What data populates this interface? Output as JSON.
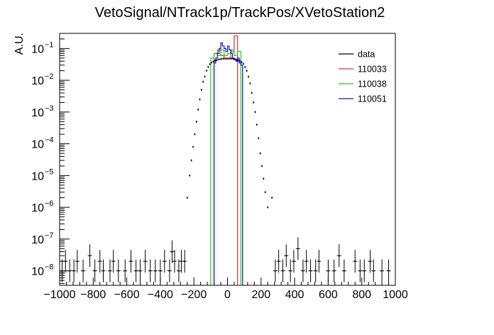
{
  "chart_data": {
    "type": "histogram",
    "title": "VetoSignal/NTrack1p/TrackPos/XVetoStation2",
    "xlabel": "",
    "ylabel": "A.U.",
    "xlim": [
      -1000,
      1000
    ],
    "ylim": [
      3.5e-09,
      0.3
    ],
    "y_scale": "log",
    "grid": false,
    "legend_position": "top-right",
    "x_tick_labels": [
      "−1000",
      "−800",
      "−600",
      "−400",
      "−200",
      "0",
      "200",
      "400",
      "600",
      "800",
      "1000"
    ],
    "x_ticks": [
      -1000,
      -800,
      -600,
      -400,
      -200,
      0,
      200,
      400,
      600,
      800,
      1000
    ],
    "y_ticks": [
      {
        "value": 1e-08,
        "base": "10",
        "exp": "−8"
      },
      {
        "value": 1e-07,
        "base": "10",
        "exp": "−7"
      },
      {
        "value": 1e-06,
        "base": "10",
        "exp": "−6"
      },
      {
        "value": 1e-05,
        "base": "10",
        "exp": "−5"
      },
      {
        "value": 0.0001,
        "base": "10",
        "exp": "−4"
      },
      {
        "value": 0.001,
        "base": "10",
        "exp": "−3"
      },
      {
        "value": 0.01,
        "base": "10",
        "exp": "−2"
      },
      {
        "value": 0.1,
        "base": "10",
        "exp": "−1"
      }
    ],
    "series": [
      {
        "name": "data",
        "color": "#000000",
        "style": "points",
        "x": [
          -240,
          -225,
          -215,
          -205,
          -195,
          -185,
          -175,
          -165,
          -155,
          -145,
          -135,
          -125,
          -115,
          -105,
          -95,
          -85,
          -75,
          -65,
          -55,
          -45,
          -35,
          -25,
          -15,
          -5,
          5,
          15,
          25,
          35,
          45,
          55,
          65,
          75,
          85,
          95,
          105,
          115,
          125,
          135,
          145,
          155,
          165,
          175,
          185,
          195,
          205,
          215,
          225,
          240,
          265
        ],
        "y": [
          2e-06,
          1e-05,
          3e-05,
          8e-05,
          0.0002,
          0.0005,
          0.0012,
          0.0025,
          0.005,
          0.009,
          0.013,
          0.02,
          0.026,
          0.032,
          0.036,
          0.039,
          0.041,
          0.043,
          0.045,
          0.046,
          0.047,
          0.048,
          0.048,
          0.048,
          0.048,
          0.048,
          0.048,
          0.047,
          0.046,
          0.044,
          0.042,
          0.04,
          0.037,
          0.033,
          0.026,
          0.02,
          0.013,
          0.008,
          0.004,
          0.002,
          0.001,
          0.0004,
          0.00015,
          5e-05,
          2e-05,
          8e-06,
          3e-06,
          1e-06,
          2e-06
        ]
      },
      {
        "name": "data",
        "color": "#000000",
        "style": "sparse-points",
        "x": [
          -985,
          -965,
          -940,
          -915,
          -895,
          -860,
          -820,
          -790,
          -760,
          -740,
          -700,
          -680,
          -650,
          -610,
          -575,
          -545,
          -520,
          -490,
          -460,
          -430,
          -400,
          -375,
          -345,
          -330,
          -315,
          -290,
          -275,
          -255,
          285,
          305,
          330,
          350,
          375,
          395,
          420,
          450,
          470,
          495,
          525,
          545,
          600,
          635,
          665,
          695,
          760,
          790,
          815,
          850,
          870,
          920,
          960
        ],
        "y": [
          1e-08,
          2e-08,
          1e-08,
          1e-08,
          2e-08,
          1e-08,
          3e-08,
          1e-08,
          2e-08,
          1e-08,
          1e-08,
          2e-08,
          1e-08,
          1e-08,
          2e-08,
          1e-08,
          1e-08,
          2e-08,
          1e-08,
          1e-08,
          1e-08,
          2e-08,
          1e-08,
          4e-08,
          2e-08,
          1e-08,
          2e-08,
          2e-08,
          1e-08,
          2e-08,
          1e-08,
          3e-08,
          1e-08,
          2e-08,
          5e-08,
          1e-08,
          2e-08,
          1e-08,
          1e-08,
          2e-08,
          1e-08,
          1e-08,
          3e-08,
          1e-08,
          2e-08,
          1e-08,
          1e-08,
          2e-08,
          1e-08,
          1e-08,
          1e-08
        ]
      },
      {
        "name": "110033",
        "color": "#e8302a",
        "style": "step",
        "edges": [
          -80,
          -60,
          -40,
          -20,
          0,
          20,
          40,
          60
        ],
        "values": [
          0.07,
          0.09,
          0.06,
          0.05,
          0.05,
          0.08,
          0.25
        ]
      },
      {
        "name": "110038",
        "color": "#22cc22",
        "style": "step",
        "edges": [
          -100,
          -80,
          -60,
          -40,
          -20,
          0,
          20,
          40,
          60,
          80
        ],
        "values": [
          0.05,
          0.07,
          0.06,
          0.09,
          0.06,
          0.07,
          0.09,
          0.06,
          0.08
        ]
      },
      {
        "name": "110051",
        "color": "#1010cc",
        "style": "step",
        "edges": [
          -80,
          -70,
          -60,
          -50,
          -40,
          -30,
          -20,
          -10,
          0,
          10,
          20,
          30,
          40,
          50,
          60,
          70,
          80,
          90
        ],
        "values": [
          0.035,
          0.05,
          0.07,
          0.1,
          0.15,
          0.12,
          0.1,
          0.08,
          0.12,
          0.09,
          0.07,
          0.05,
          0.045,
          0.04,
          0.05,
          0.035,
          0.03
        ]
      }
    ],
    "legend": [
      {
        "name": "data",
        "color": "#000000"
      },
      {
        "name": "110033",
        "color": "#e8302a"
      },
      {
        "name": "110038",
        "color": "#22cc22"
      },
      {
        "name": "110051",
        "color": "#1010cc"
      }
    ]
  }
}
